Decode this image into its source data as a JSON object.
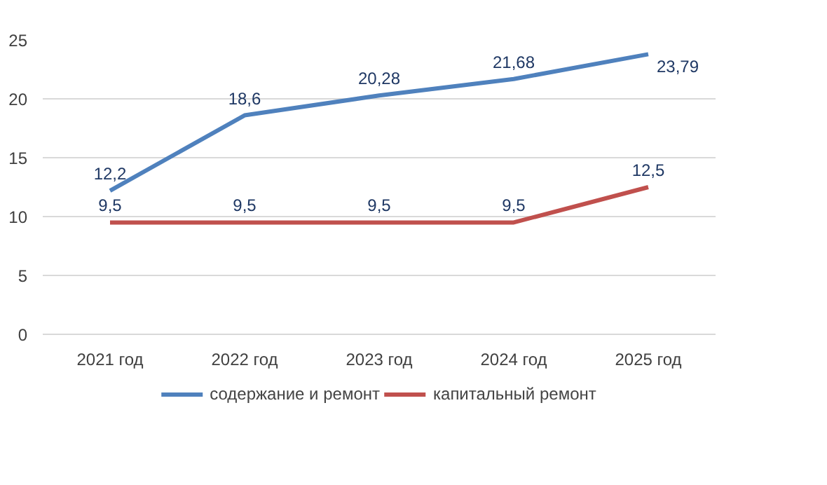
{
  "chart_data": {
    "type": "line",
    "categories": [
      "2021 год",
      "2022 год",
      "2023 год",
      "2024 год",
      "2025 год"
    ],
    "series": [
      {
        "name": "содержание и ремонт",
        "color": "#4f81bd",
        "values": [
          12.2,
          18.6,
          20.28,
          21.68,
          23.79
        ],
        "value_labels": [
          "12,2",
          "18,6",
          "20,28",
          "21,68",
          "23,79"
        ]
      },
      {
        "name": "капитальный ремонт",
        "color": "#c0504d",
        "values": [
          9.5,
          9.5,
          9.5,
          9.5,
          12.5
        ],
        "value_labels": [
          "9,5",
          "9,5",
          "9,5",
          "9,5",
          "12,5"
        ]
      }
    ],
    "ylim": [
      0,
      25
    ],
    "yticks": [
      0,
      5,
      10,
      15,
      20,
      25
    ],
    "grid": "y",
    "legend": "bottom",
    "marker": "none",
    "line_style": "solid"
  }
}
